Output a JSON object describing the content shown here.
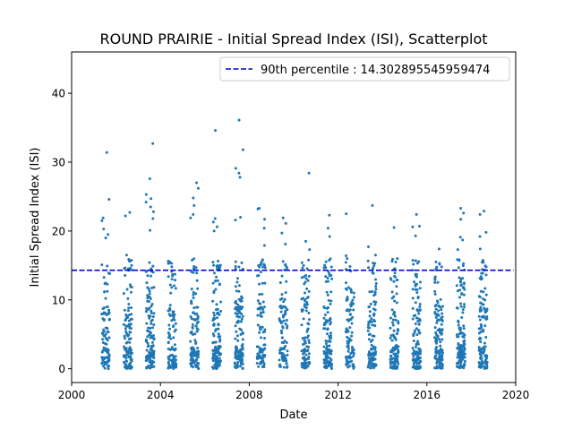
{
  "chart_data": {
    "type": "scatter",
    "title": "ROUND PRAIRIE - Initial Spread Index (ISI), Scatterplot",
    "xlabel": "Date",
    "ylabel": "Initial Spread Index (ISI)",
    "xlim": [
      2000.0,
      2020.0
    ],
    "ylim": [
      -2.0,
      46.0
    ],
    "x_ticks": [
      2000,
      2004,
      2008,
      2012,
      2016,
      2020
    ],
    "x_tick_labels": [
      "2000",
      "2004",
      "2008",
      "2012",
      "2016",
      "2020"
    ],
    "y_ticks": [
      0,
      10,
      20,
      30,
      40
    ],
    "y_tick_labels": [
      "0",
      "10",
      "20",
      "30",
      "40"
    ],
    "grid": false,
    "legend": {
      "position": "top-right",
      "entries": [
        {
          "label": "90th percentile : 14.302895545959474",
          "style": "dashed",
          "color": "#0000cc"
        }
      ]
    },
    "reference_line": {
      "name": "90th percentile : 14.302895545959474",
      "y": 14.302895545959474,
      "x_range": [
        2000.0,
        2019.9
      ],
      "color": "#0000cc"
    },
    "series": [
      {
        "color": "#1f77b4",
        "season_start_fraction": 0.35,
        "season_end_fraction": 0.72,
        "seasons": [
          {
            "year": 2001,
            "count": 90,
            "peaks": [
              31.4,
              24.6,
              21.9,
              21.5,
              20.3,
              19.5,
              19.0
            ]
          },
          {
            "year": 2002,
            "count": 110,
            "peaks": [
              22.7,
              22.2,
              16.5,
              15.6,
              15.0
            ]
          },
          {
            "year": 2003,
            "count": 120,
            "peaks": [
              32.7,
              27.6,
              25.3,
              24.7,
              24.2,
              23.5,
              22.8,
              21.8,
              20.1
            ]
          },
          {
            "year": 2004,
            "count": 95,
            "peaks": [
              15.3,
              14.8,
              11.8
            ]
          },
          {
            "year": 2005,
            "count": 115,
            "peaks": [
              27.0,
              26.2,
              24.8,
              23.7,
              22.4,
              21.9
            ]
          },
          {
            "year": 2006,
            "count": 125,
            "peaks": [
              34.6,
              21.8,
              21.3,
              20.6,
              20.0
            ]
          },
          {
            "year": 2007,
            "count": 130,
            "peaks": [
              36.1,
              31.8,
              29.1,
              28.4,
              27.8,
              22.0,
              21.6
            ]
          },
          {
            "year": 2008,
            "count": 100,
            "peaks": [
              23.3,
              23.2,
              21.7,
              20.4,
              17.9
            ]
          },
          {
            "year": 2009,
            "count": 95,
            "peaks": [
              21.9,
              21.1,
              19.7,
              18.1
            ]
          },
          {
            "year": 2010,
            "count": 100,
            "peaks": [
              28.4,
              18.5,
              17.3
            ]
          },
          {
            "year": 2011,
            "count": 110,
            "peaks": [
              22.3,
              20.4,
              19.2
            ]
          },
          {
            "year": 2012,
            "count": 100,
            "peaks": [
              22.5,
              16.4,
              16.0
            ]
          },
          {
            "year": 2013,
            "count": 105,
            "peaks": [
              23.7,
              17.7,
              16.5
            ]
          },
          {
            "year": 2014,
            "count": 115,
            "peaks": [
              20.5,
              16.0,
              15.5
            ]
          },
          {
            "year": 2015,
            "count": 115,
            "peaks": [
              22.4,
              20.7,
              20.6,
              19.3
            ]
          },
          {
            "year": 2016,
            "count": 125,
            "peaks": [
              17.4,
              14.8,
              14.5
            ]
          },
          {
            "year": 2017,
            "count": 140,
            "peaks": [
              23.3,
              22.6,
              21.7,
              19.1,
              18.7,
              17.3
            ]
          },
          {
            "year": 2018,
            "count": 120,
            "peaks": [
              22.9,
              22.4,
              19.8,
              19.2,
              17.4
            ]
          }
        ]
      }
    ]
  }
}
